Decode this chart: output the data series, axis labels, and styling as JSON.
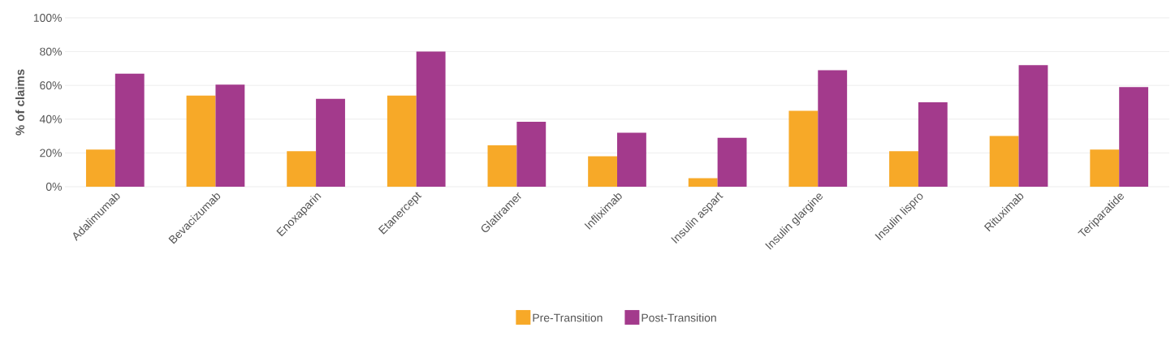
{
  "chart_data": {
    "type": "bar",
    "ylabel": "% of claims",
    "categories": [
      "Adalimumab",
      "Bevacizumab",
      "Enoxaparin",
      "Etanercept",
      "Glatiramer",
      "Infliximab",
      "Insulin aspart",
      "Insulin glargine",
      "Insulin lispro",
      "Rituximab",
      "Teriparatide"
    ],
    "series": [
      {
        "name": "Pre-Transition",
        "color": "#f7a928",
        "values": [
          22,
          54,
          21,
          54,
          24.5,
          18,
          5,
          45,
          21,
          30,
          22
        ]
      },
      {
        "name": "Post-Transition",
        "color": "#a33a8c",
        "values": [
          67,
          60.5,
          52,
          80,
          38.5,
          32,
          29,
          69,
          50,
          72,
          59
        ]
      }
    ],
    "ylim": [
      0,
      100
    ],
    "yticks": [
      {
        "value": 0,
        "label": "0%"
      },
      {
        "value": 20,
        "label": "20%"
      },
      {
        "value": 40,
        "label": "40%"
      },
      {
        "value": 60,
        "label": "60%"
      },
      {
        "value": 80,
        "label": "80%"
      },
      {
        "value": 100,
        "label": "100%"
      }
    ],
    "grid": "y",
    "legend": "bottom"
  }
}
